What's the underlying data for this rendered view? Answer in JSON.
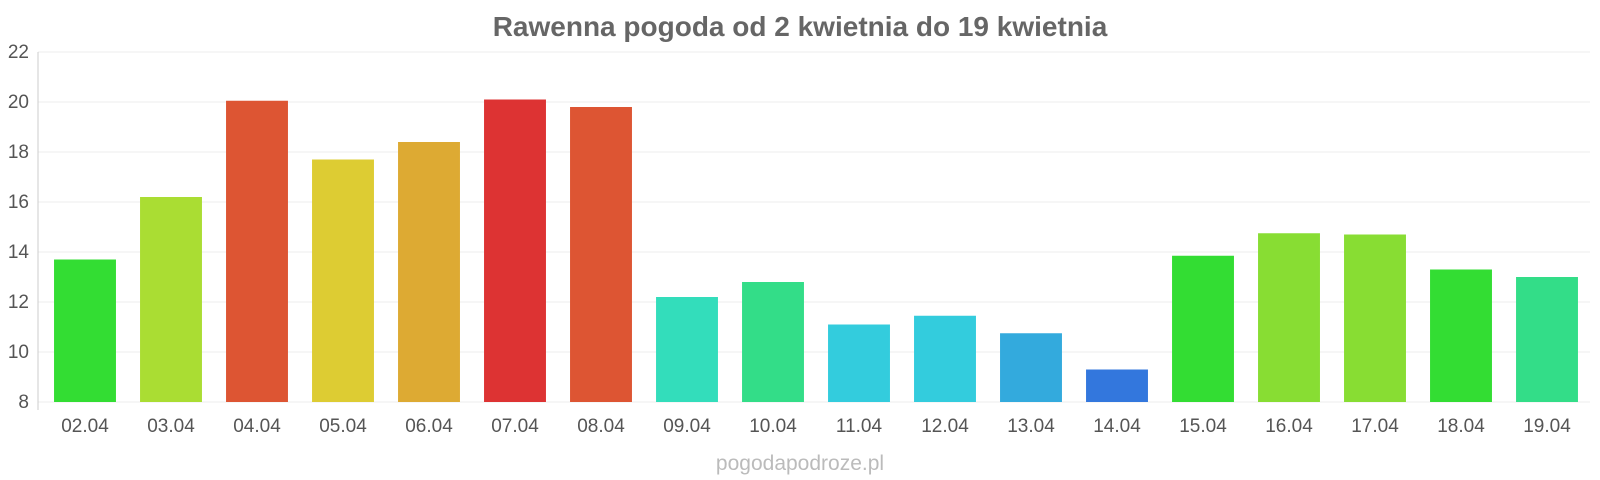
{
  "chart_data": {
    "type": "bar",
    "title": "Rawenna pogoda od 2 kwietnia do 19 kwietnia",
    "xlabel": "",
    "ylabel": "",
    "categories": [
      "02.04",
      "03.04",
      "04.04",
      "05.04",
      "06.04",
      "07.04",
      "08.04",
      "09.04",
      "10.04",
      "11.04",
      "12.04",
      "13.04",
      "14.04",
      "15.04",
      "16.04",
      "17.04",
      "18.04",
      "19.04"
    ],
    "values": [
      13.7,
      16.2,
      20.05,
      17.7,
      18.4,
      20.1,
      19.8,
      12.2,
      12.8,
      11.1,
      11.45,
      10.75,
      9.3,
      13.85,
      14.75,
      14.7,
      13.3,
      13.0
    ],
    "colors": [
      "#33dd33",
      "#aadd33",
      "#dd5533",
      "#ddcc33",
      "#ddaa33",
      "#dd3333",
      "#dd5533",
      "#33ddbb",
      "#33dd88",
      "#33ccdd",
      "#33ccdd",
      "#33aadd",
      "#3377dd",
      "#33dd33",
      "#88dd33",
      "#88dd33",
      "#33dd33",
      "#33dd88"
    ],
    "ylim": [
      8,
      22
    ],
    "yticks": [
      "8",
      "10",
      "12",
      "14",
      "16",
      "18",
      "20",
      "22"
    ],
    "grid": true,
    "legend": "none"
  },
  "watermark": "pogodapodroze.pl"
}
